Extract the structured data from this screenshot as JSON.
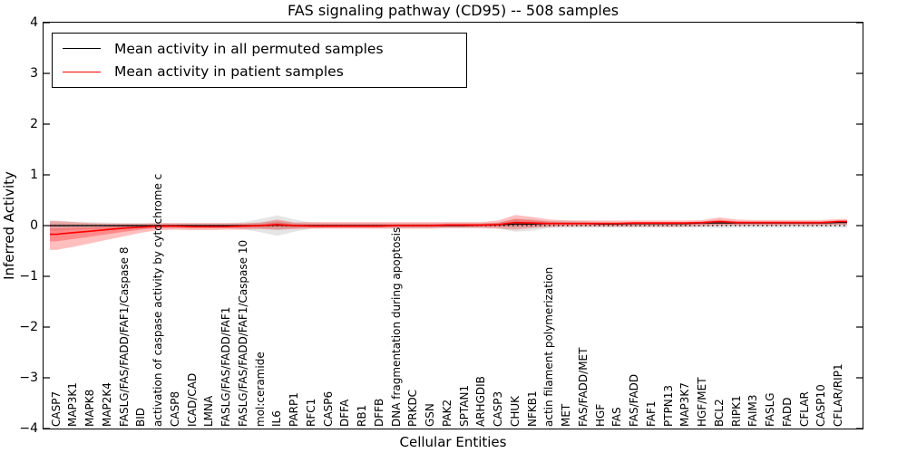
{
  "chart_data": {
    "type": "line",
    "title": "FAS signaling pathway (CD95) -- 508 samples",
    "xlabel": "Cellular Entities",
    "ylabel": "Inferred Activity",
    "ylim": [
      -4,
      4
    ],
    "yticks": [
      4,
      3,
      2,
      1,
      0,
      -1,
      -2,
      -3,
      -4
    ],
    "grid": false,
    "legend_position": "upper left",
    "zero_reference_line": 0,
    "categories": [
      "CASP7",
      "MAP3K1",
      "MAPK8",
      "MAP2K4",
      "FASLG/FAS/FADD/FAF1/Caspase 8",
      "BID",
      "activation of caspase activity by cytochrome c",
      "CASP8",
      "ICAD/CAD",
      "LMNA",
      "FASLG/FAS/FADD/FAF1",
      "FASLG/FAS/FADD/FAF1/Caspase 10",
      "mol:ceramide",
      "IL6",
      "PARP1",
      "RFC1",
      "CASP6",
      "DFFA",
      "RB1",
      "DFFB",
      "DNA fragmentation during apoptosis",
      "PRKDC",
      "GSN",
      "PAK2",
      "SPTAN1",
      "ARHGDIB",
      "CASP3",
      "CHUK",
      "NFKB1",
      "actin filament polymerization",
      "MET",
      "FAS/FADD/MET",
      "HGF",
      "FAS",
      "FAS/FADD",
      "FAF1",
      "PTPN13",
      "MAP3K7",
      "HGF/MET",
      "BCL2",
      "RIPK1",
      "FAIM3",
      "FASLG",
      "FADD",
      "CFLAR",
      "CASP10",
      "CFLAR/RIP1"
    ],
    "series": [
      {
        "name": "Mean activity in all permuted samples",
        "color": "#000000",
        "style": "solid",
        "values": [
          0,
          0,
          0,
          0,
          0,
          0,
          0,
          0,
          0,
          0,
          0,
          0,
          0,
          0.01,
          0,
          0,
          0,
          0,
          0,
          0,
          0,
          0,
          0,
          0,
          0,
          0.01,
          0.02,
          0.03,
          0.03,
          0.04,
          0.04,
          0.04,
          0.03,
          0.03,
          0.04,
          0.04,
          0.04,
          0.04,
          0.05,
          0.05,
          0.05,
          0.05,
          0.05,
          0.05,
          0.05,
          0.05,
          0.06
        ],
        "band_lo": [
          -0.1,
          -0.08,
          -0.07,
          -0.06,
          -0.05,
          -0.05,
          -0.05,
          -0.05,
          -0.05,
          -0.05,
          -0.05,
          -0.07,
          -0.13,
          -0.2,
          -0.12,
          -0.06,
          -0.05,
          -0.05,
          -0.05,
          -0.05,
          -0.05,
          -0.05,
          -0.05,
          -0.05,
          -0.05,
          -0.05,
          -0.06,
          -0.12,
          -0.1,
          -0.05,
          -0.04,
          -0.04,
          -0.04,
          -0.04,
          -0.04,
          -0.04,
          -0.04,
          -0.04,
          -0.04,
          -0.05,
          -0.04,
          -0.04,
          -0.04,
          -0.04,
          -0.04,
          -0.04,
          -0.04
        ],
        "band_hi": [
          0.1,
          0.08,
          0.07,
          0.06,
          0.05,
          0.05,
          0.05,
          0.05,
          0.05,
          0.05,
          0.05,
          0.07,
          0.13,
          0.2,
          0.12,
          0.06,
          0.05,
          0.05,
          0.05,
          0.05,
          0.05,
          0.05,
          0.05,
          0.05,
          0.05,
          0.05,
          0.06,
          0.14,
          0.12,
          0.09,
          0.1,
          0.09,
          0.07,
          0.06,
          0.06,
          0.06,
          0.06,
          0.06,
          0.06,
          0.07,
          0.06,
          0.06,
          0.06,
          0.06,
          0.06,
          0.06,
          0.06
        ],
        "band_color": "#999999"
      },
      {
        "name": "Mean activity in patient samples",
        "color": "#ff0000",
        "style": "solid",
        "values": [
          -0.17,
          -0.14,
          -0.11,
          -0.08,
          -0.05,
          -0.03,
          -0.01,
          -0.01,
          -0.02,
          -0.02,
          -0.02,
          -0.01,
          0,
          0.02,
          0,
          -0.01,
          -0.01,
          -0.01,
          -0.01,
          -0.01,
          0,
          0,
          0,
          0.01,
          0.01,
          0.01,
          0.02,
          0.06,
          0.05,
          0.04,
          0.04,
          0.04,
          0.04,
          0.04,
          0.05,
          0.05,
          0.05,
          0.05,
          0.06,
          0.08,
          0.06,
          0.06,
          0.06,
          0.06,
          0.06,
          0.06,
          0.08
        ],
        "band_lo": [
          -0.48,
          -0.42,
          -0.35,
          -0.28,
          -0.21,
          -0.14,
          -0.09,
          -0.08,
          -0.09,
          -0.09,
          -0.08,
          -0.08,
          -0.07,
          -0.08,
          -0.07,
          -0.06,
          -0.06,
          -0.06,
          -0.06,
          -0.06,
          -0.06,
          -0.06,
          -0.06,
          -0.05,
          -0.05,
          -0.05,
          -0.06,
          -0.08,
          -0.05,
          -0.03,
          -0.02,
          -0.02,
          -0.02,
          -0.02,
          -0.02,
          -0.02,
          -0.02,
          -0.02,
          -0.01,
          0,
          0,
          0,
          0,
          0,
          0,
          0,
          0.01
        ],
        "band_hi": [
          0.09,
          0.07,
          0.05,
          0.04,
          0.04,
          0.04,
          0.05,
          0.05,
          0.05,
          0.05,
          0.05,
          0.05,
          0.06,
          0.12,
          0.06,
          0.07,
          0.07,
          0.07,
          0.07,
          0.07,
          0.07,
          0.07,
          0.07,
          0.07,
          0.07,
          0.07,
          0.1,
          0.21,
          0.17,
          0.12,
          0.1,
          0.1,
          0.1,
          0.1,
          0.1,
          0.1,
          0.1,
          0.1,
          0.11,
          0.16,
          0.12,
          0.11,
          0.11,
          0.11,
          0.11,
          0.11,
          0.13
        ],
        "band_color": "#ff0000"
      }
    ]
  },
  "legend": {
    "items": [
      {
        "label": "Mean activity in all permuted samples",
        "color": "#000000"
      },
      {
        "label": "Mean activity in patient samples",
        "color": "#ff0000"
      }
    ]
  }
}
